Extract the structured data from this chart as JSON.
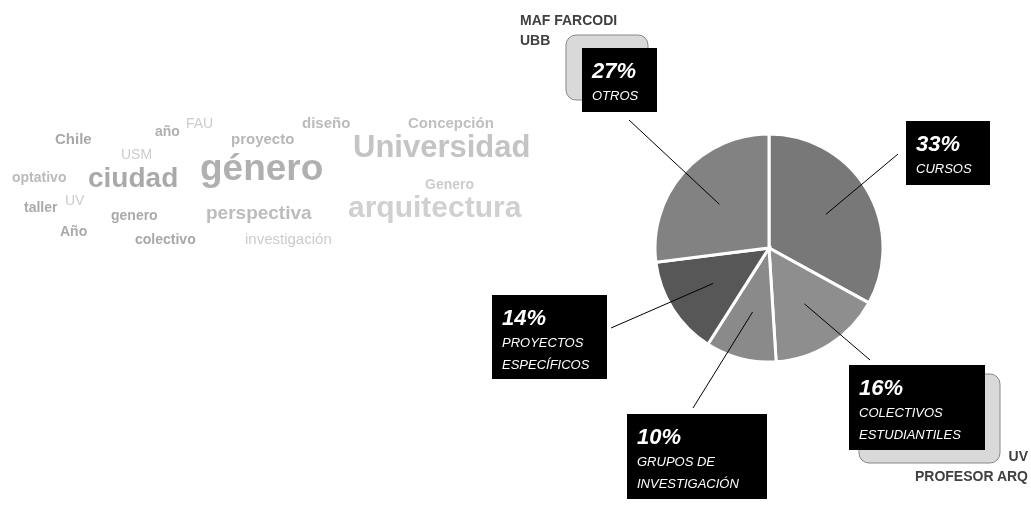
{
  "chart_data": {
    "type": "pie",
    "categories": [
      "CURSOS",
      "COLECTIVOS ESTUDIANTILES",
      "GRUPOS DE INVESTIGACIÓN",
      "PROYECTOS ESPECÍFICOS",
      "OTROS"
    ],
    "values": [
      33,
      16,
      10,
      14,
      27
    ],
    "value_labels": [
      "33%",
      "16%",
      "10%",
      "14%",
      "27%"
    ],
    "colors": [
      "#787878",
      "#8e8e8e",
      "#8a8a8a",
      "#575757",
      "#828282"
    ],
    "annotations": [
      "MAF FARCODI\nUBB",
      "UV\nPROFESOR ARQ",
      "Chile",
      "año",
      "FAU",
      "proyecto",
      "diseño",
      "Concepción",
      "USM",
      "Universidad",
      "optativo",
      "ciudad",
      "género",
      "Genero",
      "taller",
      "UV",
      "genero",
      "perspectiva",
      "arquitectura",
      "Año",
      "colectivo",
      "investigación"
    ]
  }
}
